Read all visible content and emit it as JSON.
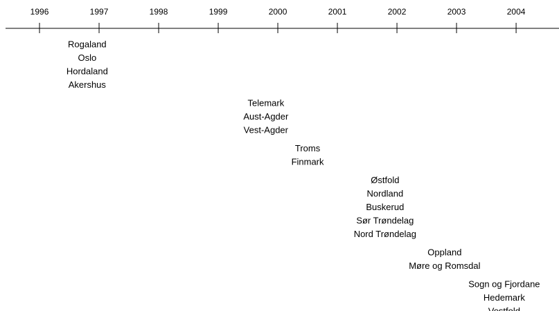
{
  "chart_data": {
    "type": "timeline",
    "xlim": [
      1995.43,
      2004.72
    ],
    "xticks": [
      1996,
      1997,
      1998,
      1999,
      2000,
      2001,
      2002,
      2003,
      2004
    ],
    "events": [
      {
        "x": 1996.8,
        "labels": [
          "Rogaland",
          "Oslo",
          "Hordaland",
          "Akershus"
        ]
      },
      {
        "x": 1999.8,
        "labels": [
          "Telemark",
          "Aust-Agder",
          "Vest-Agder"
        ]
      },
      {
        "x": 2000.5,
        "labels": [
          "Troms",
          "Finmark"
        ]
      },
      {
        "x": 2001.8,
        "labels": [
          "Østfold",
          "Nordland",
          "Buskerud",
          "Sør Trøndelag",
          "Nord Trøndelag"
        ]
      },
      {
        "x": 2002.8,
        "labels": [
          "Oppland",
          "Møre og Romsdal"
        ]
      },
      {
        "x": 2003.8,
        "labels": [
          "Sogn og Fjordane",
          "Hedemark",
          "Vestfold"
        ]
      }
    ]
  }
}
